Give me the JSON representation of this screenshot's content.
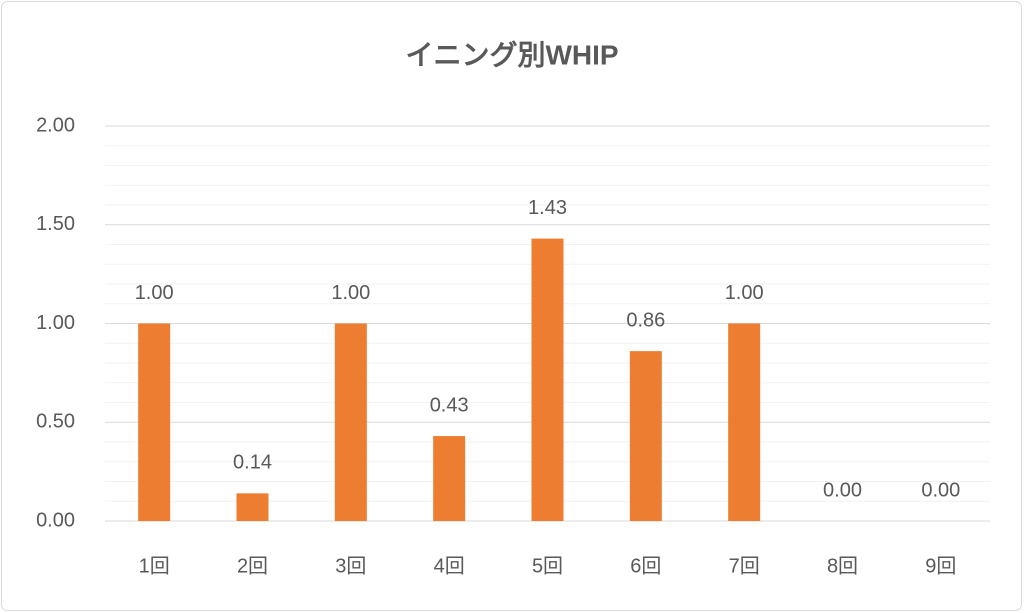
{
  "chart_data": {
    "type": "bar",
    "title": "イニング別WHIP",
    "categories": [
      "1回",
      "2回",
      "3回",
      "4回",
      "5回",
      "6回",
      "7回",
      "8回",
      "9回"
    ],
    "values": [
      1,
      0.14,
      1,
      0.43,
      1.43,
      0.86,
      1,
      0,
      0
    ],
    "value_labels": [
      "1.00",
      "0.14",
      "1.00",
      "0.43",
      "1.43",
      "0.86",
      "1.00",
      "0.00",
      "0.00"
    ],
    "color": "#ed7d31",
    "ylim": [
      0,
      2
    ],
    "yticks": [
      {
        "value": 0,
        "label": "0.00"
      },
      {
        "value": 0.5,
        "label": "0.50"
      },
      {
        "value": 1,
        "label": "1.00"
      },
      {
        "value": 1.5,
        "label": "1.50"
      },
      {
        "value": 2,
        "label": "2.00"
      }
    ],
    "grid": true
  }
}
